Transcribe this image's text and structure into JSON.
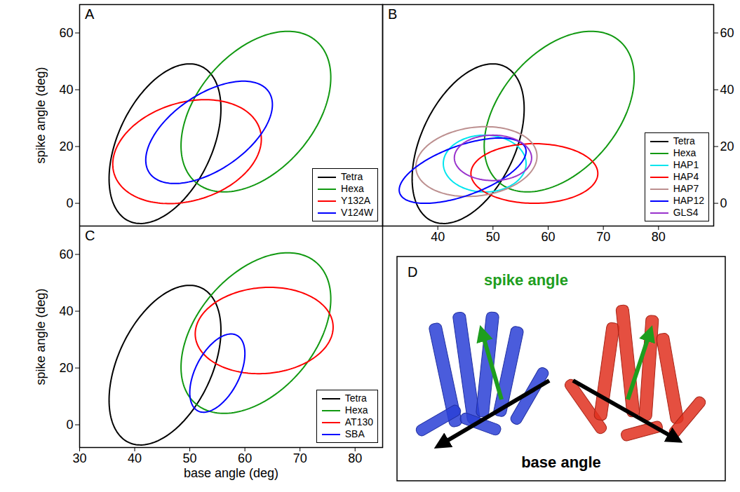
{
  "chart_data": [
    {
      "type": "ellipse",
      "panel": "A",
      "ylabel": "spike angle (deg)",
      "xlim": [
        30,
        85
      ],
      "xticks": [
        30,
        40,
        50,
        60,
        70,
        80
      ],
      "ylim": [
        -8,
        70
      ],
      "yticks": [
        0,
        20,
        40,
        60
      ],
      "tick_labels": "y",
      "legend": "bottom-right",
      "series": [
        {
          "name": "Tetra",
          "color": "#000000",
          "center": [
            45.5,
            21
          ],
          "semi_axes": [
            28.5,
            9
          ],
          "tilt": 80
        },
        {
          "name": "Hexa",
          "color": "#119911",
          "center": [
            62,
            32.3
          ],
          "semi_axes": [
            29,
            12
          ],
          "tilt": 76
        },
        {
          "name": "Y132A",
          "color": "#ff0000",
          "center": [
            49.5,
            18.2
          ],
          "semi_axes": [
            18.85,
            12.7
          ],
          "tilt": 71
        },
        {
          "name": "V124W",
          "color": "#0000ff",
          "center": [
            53.5,
            25
          ],
          "semi_axes": [
            19.4,
            8.97
          ],
          "tilt": 65.3
        }
      ]
    },
    {
      "type": "ellipse",
      "panel": "B",
      "xlim": [
        30,
        90
      ],
      "xticks": [
        40,
        50,
        60,
        70,
        80
      ],
      "y2lim": [
        -8,
        70
      ],
      "y2ticks": [
        0,
        20,
        40,
        60
      ],
      "legend": "bottom-right",
      "series": [
        {
          "name": "Tetra",
          "color": "#000000",
          "center": [
            45.5,
            21
          ],
          "semi_axes": [
            28.5,
            9
          ],
          "tilt": 80,
          "axis": "y2"
        },
        {
          "name": "Hexa",
          "color": "#119911",
          "center": [
            62,
            32.3
          ],
          "semi_axes": [
            29,
            12
          ],
          "tilt": 76,
          "axis": "y2"
        },
        {
          "name": "HAP1",
          "color": "#00e5ee",
          "center": [
            48.5,
            14
          ],
          "semi_axes": [
            10,
            7.5
          ],
          "tilt": 90,
          "axis": "y2"
        },
        {
          "name": "HAP4",
          "color": "#ff0000",
          "center": [
            57.5,
            10.5
          ],
          "semi_axes": [
            11.5,
            10.5
          ],
          "tilt": 0,
          "axis": "y2"
        },
        {
          "name": "HAP7",
          "color": "#bc8f8f",
          "center": [
            47,
            14.7
          ],
          "semi_axes": [
            12.7,
            10.5
          ],
          "tilt": 63.4,
          "axis": "y2"
        },
        {
          "name": "HAP12",
          "color": "#0000ff",
          "center": [
            44.5,
            11.5
          ],
          "semi_axes": [
            14.5,
            7.35
          ],
          "tilt": 45,
          "axis": "y2"
        },
        {
          "name": "GLS4",
          "color": "#9932cc",
          "center": [
            50,
            16
          ],
          "semi_axes": [
            8,
            7
          ],
          "tilt": 90,
          "axis": "y2"
        }
      ]
    },
    {
      "type": "ellipse",
      "panel": "C",
      "xlabel": "base angle (deg)",
      "ylabel": "spike angle (deg)",
      "xlim": [
        30,
        85
      ],
      "xticks": [
        30,
        40,
        50,
        60,
        70,
        80
      ],
      "ylim": [
        -8,
        70
      ],
      "yticks": [
        0,
        20,
        40,
        60
      ],
      "legend": "bottom-right",
      "series": [
        {
          "name": "Tetra",
          "color": "#000000",
          "center": [
            45.5,
            21
          ],
          "semi_axes": [
            28.5,
            9
          ],
          "tilt": 80
        },
        {
          "name": "Hexa",
          "color": "#119911",
          "center": [
            62,
            32.3
          ],
          "semi_axes": [
            29,
            12
          ],
          "tilt": 76
        },
        {
          "name": "AT130",
          "color": "#ff0000",
          "center": [
            63.5,
            33.2
          ],
          "semi_axes": [
            15.3,
            12.4
          ],
          "tilt": 79.1
        },
        {
          "name": "SBA",
          "color": "#0000ff",
          "center": [
            55,
            18.2
          ],
          "semi_axes": [
            14.03,
            4.26
          ],
          "tilt": 78.7
        }
      ]
    }
  ],
  "panel_d": {
    "panel": "D",
    "spike_label": {
      "text": "spike angle",
      "color": "#1e9e1e"
    },
    "base_label": {
      "text": "base angle",
      "color": "#000000"
    }
  }
}
